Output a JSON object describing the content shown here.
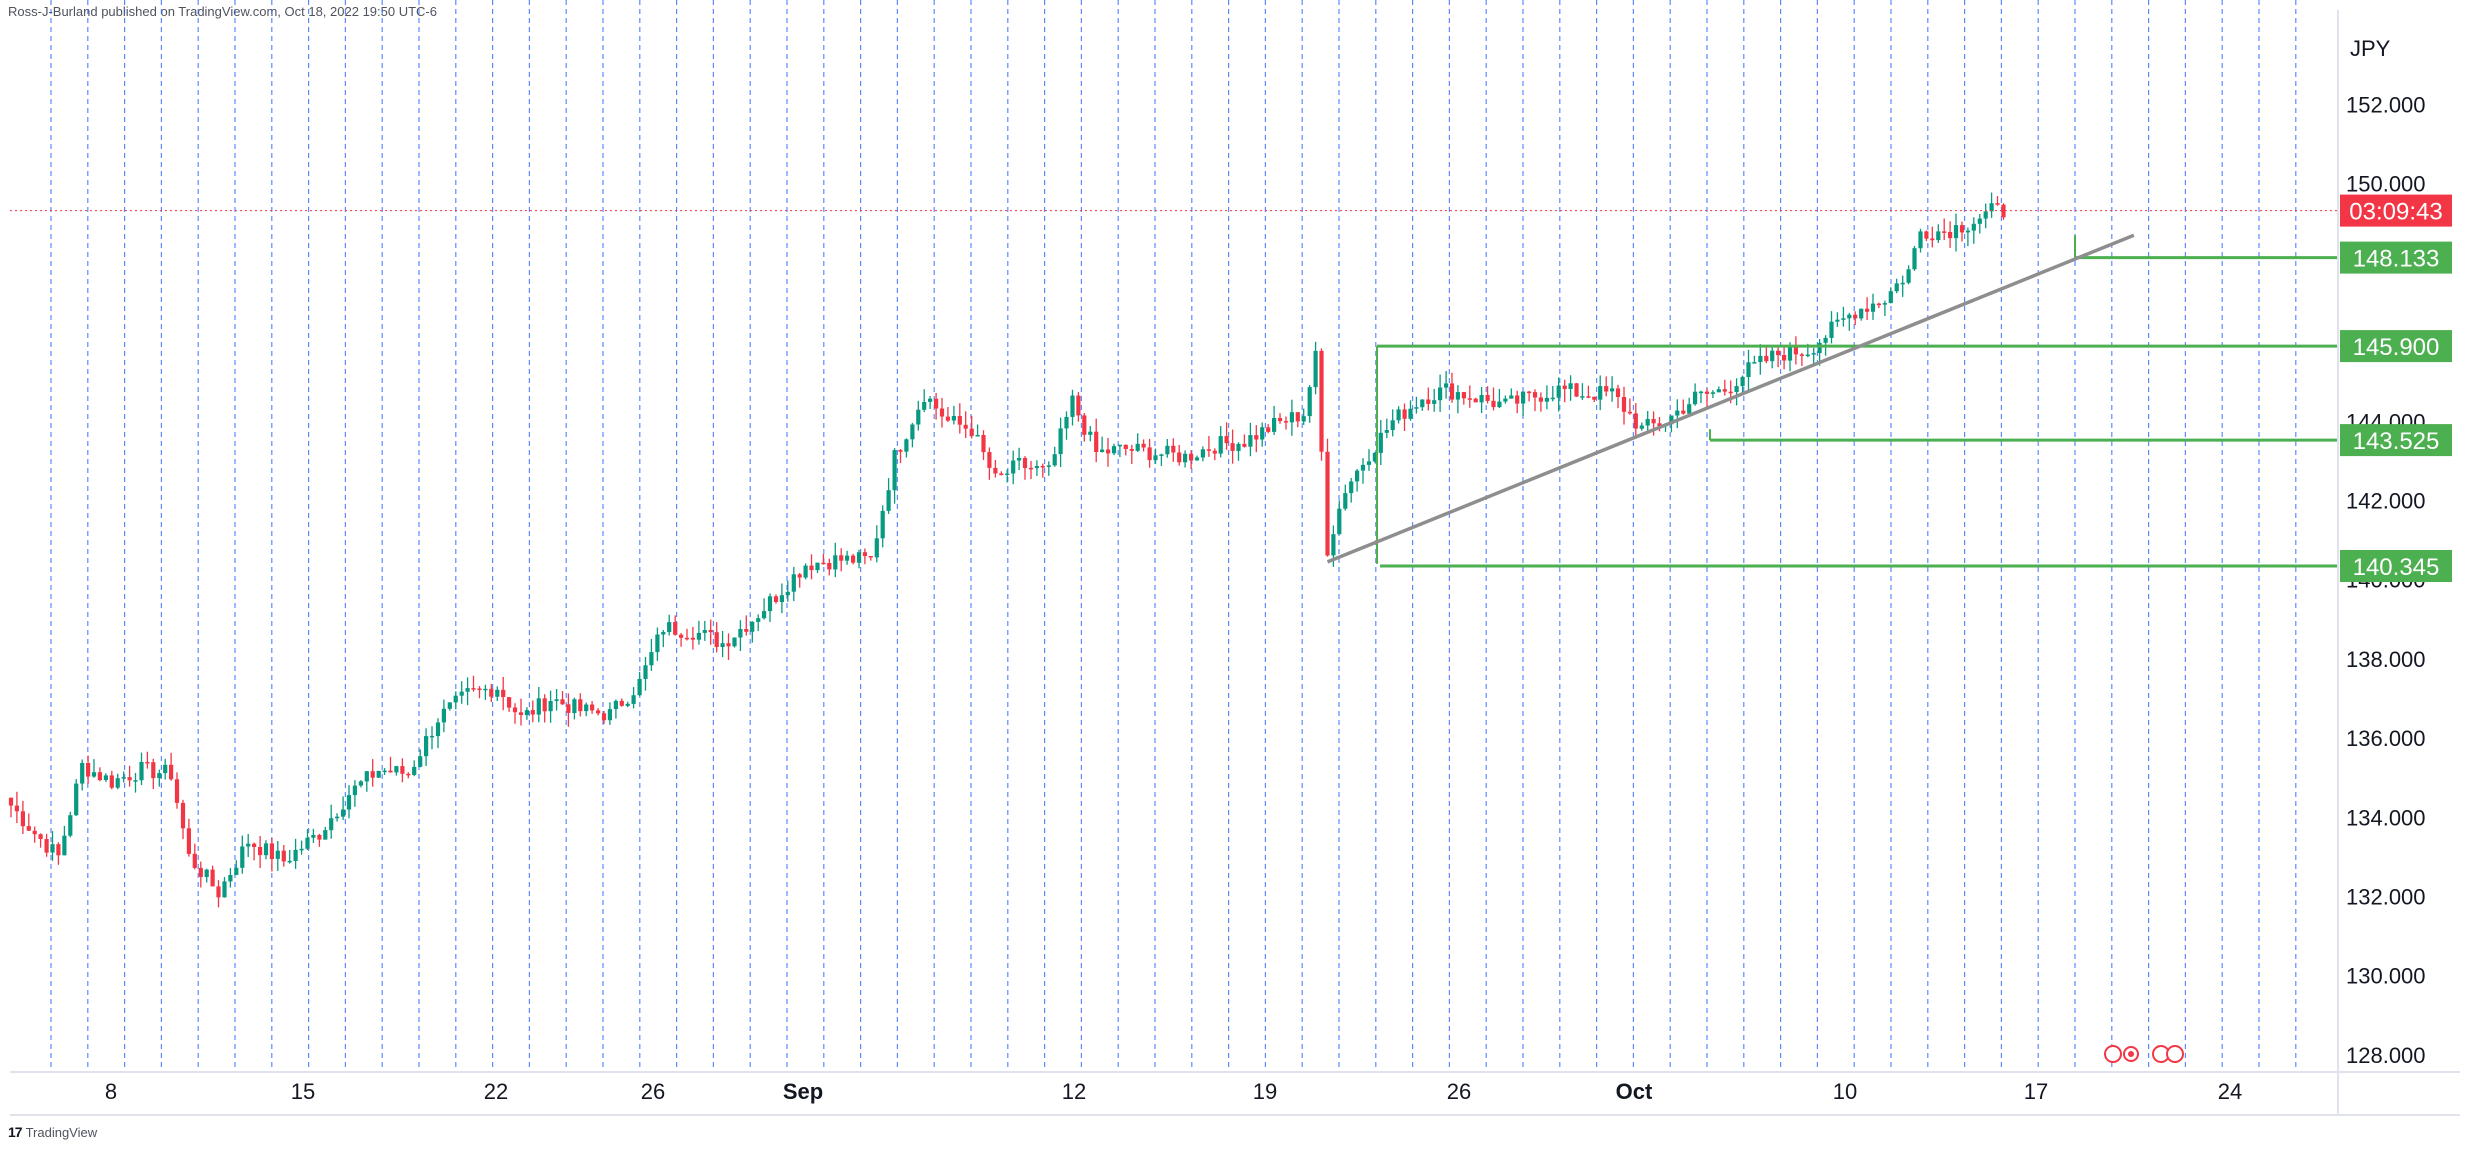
{
  "header": {
    "text": "Ross-J-Burland published on TradingView.com, Oct 18, 2022 19:50 UTC-6"
  },
  "footer": {
    "brand": "TradingView"
  },
  "colors": {
    "up": "#089981",
    "down": "#f23645",
    "level": "#4caf50",
    "trend": "#8e8e8e",
    "grid_dash": "#2962ff",
    "badge_red": "#f23645",
    "badge_green": "#4caf50"
  },
  "chart_data": {
    "type": "candlestick",
    "currency": "JPY",
    "ylim": [
      127.6,
      153.2
    ],
    "y_ticks": [
      "152.000",
      "150.000",
      "144.000",
      "142.000",
      "140.000",
      "138.000",
      "136.000",
      "134.000",
      "132.000",
      "130.000",
      "128.000"
    ],
    "x_tick_labels": [
      "8",
      "15",
      "22",
      "26",
      "Sep",
      "12",
      "19",
      "26",
      "Oct",
      "10",
      "17",
      "24"
    ],
    "bold_x_labels": [
      "Sep",
      "Oct"
    ],
    "countdown": {
      "label": "03:09:43",
      "price": 149.32
    },
    "levels": [
      {
        "label": "148.133",
        "price": 148.133
      },
      {
        "label": "145.900",
        "price": 145.9
      },
      {
        "label": "143.525",
        "price": 143.525
      },
      {
        "label": "140.345",
        "price": 140.345
      }
    ],
    "trendline": {
      "from": {
        "bar": 222,
        "price": 140.45
      },
      "to": {
        "bar": 358,
        "price": 148.7
      }
    },
    "anchors": [
      {
        "bar": 0,
        "close": 134.3
      },
      {
        "bar": 4,
        "close": 133.6
      },
      {
        "bar": 8,
        "close": 133.0
      },
      {
        "bar": 12,
        "close": 135.3
      },
      {
        "bar": 17,
        "close": 134.9
      },
      {
        "bar": 22,
        "close": 135.2
      },
      {
        "bar": 27,
        "close": 135.1
      },
      {
        "bar": 30,
        "close": 133.0
      },
      {
        "bar": 35,
        "close": 132.1
      },
      {
        "bar": 40,
        "close": 133.4
      },
      {
        "bar": 46,
        "close": 132.9
      },
      {
        "bar": 52,
        "close": 133.6
      },
      {
        "bar": 57,
        "close": 134.6
      },
      {
        "bar": 62,
        "close": 135.2
      },
      {
        "bar": 67,
        "close": 135.1
      },
      {
        "bar": 72,
        "close": 136.5
      },
      {
        "bar": 77,
        "close": 137.1
      },
      {
        "bar": 82,
        "close": 137.3
      },
      {
        "bar": 86,
        "close": 136.5
      },
      {
        "bar": 91,
        "close": 137.0
      },
      {
        "bar": 96,
        "close": 136.7
      },
      {
        "bar": 101,
        "close": 136.6
      },
      {
        "bar": 106,
        "close": 137.4
      },
      {
        "bar": 110,
        "close": 138.8
      },
      {
        "bar": 115,
        "close": 138.7
      },
      {
        "bar": 120,
        "close": 138.4
      },
      {
        "bar": 125,
        "close": 139.0
      },
      {
        "bar": 129,
        "close": 139.6
      },
      {
        "bar": 134,
        "close": 140.4
      },
      {
        "bar": 139,
        "close": 140.5
      },
      {
        "bar": 145,
        "close": 140.5
      },
      {
        "bar": 149,
        "close": 143.1
      },
      {
        "bar": 154,
        "close": 144.7
      },
      {
        "bar": 158,
        "close": 144.0
      },
      {
        "bar": 162,
        "close": 143.8
      },
      {
        "bar": 166,
        "close": 142.5
      },
      {
        "bar": 170,
        "close": 142.9
      },
      {
        "bar": 175,
        "close": 142.7
      },
      {
        "bar": 179,
        "close": 144.5
      },
      {
        "bar": 183,
        "close": 143.2
      },
      {
        "bar": 188,
        "close": 143.3
      },
      {
        "bar": 193,
        "close": 143.2
      },
      {
        "bar": 198,
        "close": 143.1
      },
      {
        "bar": 203,
        "close": 143.4
      },
      {
        "bar": 208,
        "close": 143.5
      },
      {
        "bar": 213,
        "close": 143.9
      },
      {
        "bar": 218,
        "close": 144.2
      },
      {
        "bar": 220,
        "close": 145.6
      },
      {
        "bar": 222,
        "close": 140.8
      },
      {
        "bar": 225,
        "close": 142.3
      },
      {
        "bar": 229,
        "close": 143.2
      },
      {
        "bar": 233,
        "close": 144.0
      },
      {
        "bar": 238,
        "close": 144.6
      },
      {
        "bar": 242,
        "close": 144.8
      },
      {
        "bar": 247,
        "close": 144.6
      },
      {
        "bar": 252,
        "close": 144.4
      },
      {
        "bar": 256,
        "close": 144.6
      },
      {
        "bar": 261,
        "close": 144.8
      },
      {
        "bar": 265,
        "close": 144.7
      },
      {
        "bar": 270,
        "close": 144.7
      },
      {
        "bar": 275,
        "close": 143.8
      },
      {
        "bar": 279,
        "close": 144.0
      },
      {
        "bar": 284,
        "close": 144.6
      },
      {
        "bar": 289,
        "close": 144.8
      },
      {
        "bar": 293,
        "close": 145.3
      },
      {
        "bar": 298,
        "close": 145.7
      },
      {
        "bar": 303,
        "close": 145.8
      },
      {
        "bar": 307,
        "close": 146.3
      },
      {
        "bar": 311,
        "close": 146.8
      },
      {
        "bar": 316,
        "close": 147.1
      },
      {
        "bar": 320,
        "close": 147.8
      },
      {
        "bar": 322,
        "close": 148.8
      },
      {
        "bar": 326,
        "close": 148.8
      },
      {
        "bar": 330,
        "close": 149.0
      },
      {
        "bar": 334,
        "close": 149.3
      },
      {
        "bar": 336,
        "close": 149.3
      }
    ]
  }
}
